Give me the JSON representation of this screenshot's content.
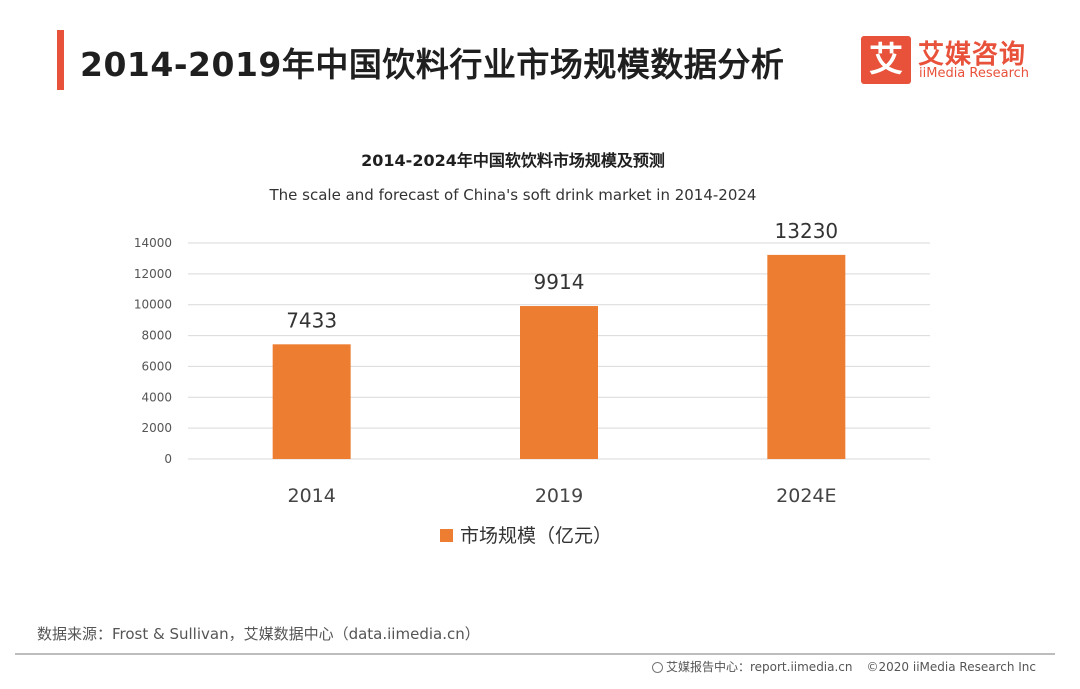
{
  "header": {
    "title": "2014-2019年中国饮料行业市场规模数据分析",
    "brand_name": "艾媒咨询",
    "brand_mark": "艾",
    "brand_sub": "iiMedia Research"
  },
  "colors": {
    "accent": "#e8513a",
    "bar": "#ed7d31",
    "grid": "#d9d9d9"
  },
  "chart_data": {
    "type": "bar",
    "title": "2014-2024年中国软饮料市场规模及预测",
    "subtitle": "The scale and forecast of China's soft drink market in 2014-2024",
    "categories": [
      "2014",
      "2019",
      "2024E"
    ],
    "series": [
      {
        "name": "市场规模（亿元）",
        "values": [
          7433,
          9914,
          13230
        ],
        "color": "#ed7d31"
      }
    ],
    "yticks": [
      0,
      2000,
      4000,
      6000,
      8000,
      10000,
      12000,
      14000
    ],
    "ylim": [
      0,
      14000
    ],
    "grid": true,
    "legend_position": "bottom",
    "data_labels": true
  },
  "source": "数据来源：Frost & Sullivan，艾媒数据中心（data.iimedia.cn）",
  "footer": {
    "report": "艾媒报告中心：report.iimedia.cn",
    "copyright": "©2020  iiMedia Research  Inc"
  }
}
